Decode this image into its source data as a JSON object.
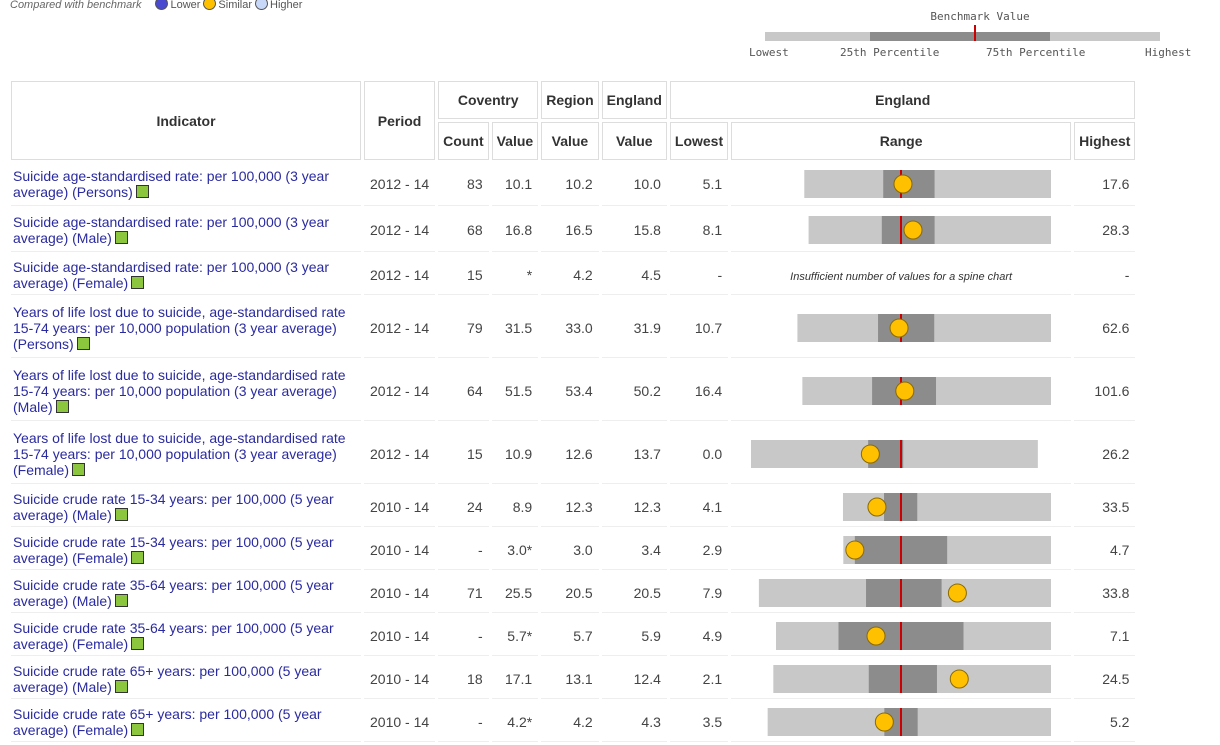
{
  "legend": {
    "label": "Compared with benchmark",
    "items": [
      {
        "label": "Lower",
        "color": "#4a4ad0"
      },
      {
        "label": "Similar",
        "color": "#ffc000"
      },
      {
        "label": "Higher",
        "color": "#c8d8f8"
      }
    ]
  },
  "benchmark_key": {
    "title": "Benchmark Value",
    "labels": [
      "Lowest",
      "25th Percentile",
      "75th Percentile",
      "Highest"
    ]
  },
  "table": {
    "headers": {
      "indicator": "Indicator",
      "period": "Period",
      "area": "Coventry",
      "region": "Region",
      "england": "England",
      "england_group": "England",
      "count": "Count",
      "value": "Value",
      "region_value": "Value",
      "england_value": "Value",
      "lowest": "Lowest",
      "range": "Range",
      "highest": "Highest"
    },
    "rows": [
      {
        "indicator": "Suicide age-standardised rate: per 100,000 (3 year average) (Persons)",
        "period": "2012 - 14",
        "count": "83",
        "value": "10.1",
        "region": "10.2",
        "england": "10.0",
        "lowest": "5.1",
        "highest": "17.6",
        "p25": 9.1,
        "p75": 11.7
      },
      {
        "indicator": "Suicide age-standardised rate: per 100,000 (3 year average) (Male)",
        "period": "2012 - 14",
        "count": "68",
        "value": "16.8",
        "region": "16.5",
        "england": "15.8",
        "lowest": "8.1",
        "highest": "28.3",
        "p25": 14.2,
        "p75": 18.6
      },
      {
        "indicator": "Suicide age-standardised rate: per 100,000 (3 year average) (Female)",
        "period": "2012 - 14",
        "count": "15",
        "value": "*",
        "region": "4.2",
        "england": "4.5",
        "lowest": "-",
        "highest": "-",
        "range_note": "Insufficient number of values for a spine chart"
      },
      {
        "indicator": "Years of life lost due to suicide, age-standardised rate 15-74 years: per 10,000 population (3 year average) (Persons)",
        "period": "2012 - 14",
        "count": "79",
        "value": "31.5",
        "region": "33.0",
        "england": "31.9",
        "lowest": "10.7",
        "highest": "62.6",
        "p25": 27.2,
        "p75": 38.7
      },
      {
        "indicator": "Years of life lost due to suicide, age-standardised rate 15-74 years: per 10,000 population (3 year average) (Male)",
        "period": "2012 - 14",
        "count": "64",
        "value": "51.5",
        "region": "53.4",
        "england": "50.2",
        "lowest": "16.4",
        "highest": "101.6",
        "p25": 40.3,
        "p75": 62.2
      },
      {
        "indicator": "Years of life lost due to suicide, age-standardised rate 15-74 years: per 10,000 population (3 year average) (Female)",
        "period": "2012 - 14",
        "count": "15",
        "value": "10.9",
        "region": "12.6",
        "england": "13.7",
        "lowest": "0.0",
        "highest": "26.2",
        "p25": 10.7,
        "p75": 13.9
      },
      {
        "indicator": "Suicide crude rate 15-34 years: per 100,000 (5 year average) (Male)",
        "period": "2010 - 14",
        "count": "24",
        "value": "8.9",
        "region": "12.3",
        "england": "12.3",
        "lowest": "4.1",
        "highest": "33.5",
        "p25": 9.9,
        "p75": 14.6
      },
      {
        "indicator": "Suicide crude rate 15-34 years: per 100,000 (5 year average) (Female)",
        "period": "2010 - 14",
        "count": "-",
        "value": "3.0*",
        "region": "3.0",
        "england": "3.4",
        "lowest": "2.9",
        "highest": "4.7",
        "p25": 3.0,
        "p75": 3.8
      },
      {
        "indicator": "Suicide crude rate 35-64 years: per 100,000 (5 year average) (Male)",
        "period": "2010 - 14",
        "count": "71",
        "value": "25.5",
        "region": "20.5",
        "england": "20.5",
        "lowest": "7.9",
        "highest": "33.8",
        "p25": 17.4,
        "p75": 24.1
      },
      {
        "indicator": "Suicide crude rate 35-64 years: per 100,000 (5 year average) (Female)",
        "period": "2010 - 14",
        "count": "-",
        "value": "5.7*",
        "region": "5.7",
        "england": "5.9",
        "lowest": "4.9",
        "highest": "7.1",
        "p25": 5.4,
        "p75": 6.4
      },
      {
        "indicator": "Suicide crude rate 65+ years: per 100,000 (5 year average) (Male)",
        "period": "2010 - 14",
        "count": "18",
        "value": "17.1",
        "region": "13.1",
        "england": "12.4",
        "lowest": "2.1",
        "highest": "24.5",
        "p25": 9.8,
        "p75": 15.3
      },
      {
        "indicator": "Suicide crude rate 65+ years: per 100,000 (5 year average) (Female)",
        "period": "2010 - 14",
        "count": "-",
        "value": "4.2*",
        "region": "4.2",
        "england": "4.3",
        "lowest": "3.5",
        "highest": "5.2",
        "p25": 4.2,
        "p75": 4.4
      }
    ]
  }
}
